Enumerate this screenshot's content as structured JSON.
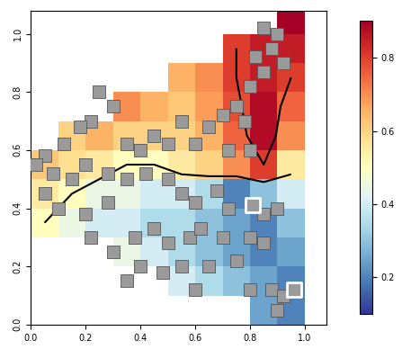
{
  "chart_data": {
    "type": "heatmap",
    "x": [
      0.05,
      0.15,
      0.25,
      0.35,
      0.45,
      0.55,
      0.65,
      0.75,
      0.85,
      0.95
    ],
    "y": [
      0.05,
      0.15,
      0.25,
      0.35,
      0.45,
      0.55,
      0.65,
      0.75,
      0.85,
      0.95,
      1.05
    ],
    "cells": [
      [
        null,
        null,
        null,
        null,
        null,
        null,
        null,
        null,
        0.25,
        0.2
      ],
      [
        null,
        null,
        null,
        null,
        null,
        0.4,
        0.35,
        0.3,
        0.25,
        0.2
      ],
      [
        null,
        null,
        null,
        0.45,
        0.4,
        0.35,
        0.3,
        0.25,
        0.2,
        0.25
      ],
      [
        0.5,
        0.45,
        0.4,
        0.4,
        0.35,
        0.35,
        0.3,
        0.25,
        0.2,
        0.3
      ],
      [
        0.55,
        0.5,
        0.45,
        0.45,
        0.4,
        0.4,
        0.35,
        0.2,
        0.3,
        0.4
      ],
      [
        0.62,
        0.58,
        0.55,
        0.5,
        0.5,
        0.55,
        0.6,
        0.7,
        0.8,
        0.55
      ],
      [
        null,
        0.6,
        0.65,
        0.6,
        0.6,
        0.6,
        0.65,
        0.75,
        0.88,
        0.7
      ],
      [
        null,
        null,
        null,
        0.7,
        0.65,
        0.62,
        0.68,
        0.78,
        0.88,
        0.75
      ],
      [
        null,
        null,
        null,
        null,
        null,
        0.65,
        0.7,
        0.8,
        0.85,
        0.8
      ],
      [
        null,
        null,
        null,
        null,
        null,
        null,
        null,
        0.8,
        0.85,
        0.85
      ],
      [
        null,
        null,
        null,
        null,
        null,
        null,
        null,
        null,
        null,
        0.9
      ]
    ],
    "contour_levels": [
      0.5,
      0.8
    ],
    "points": [
      [
        0.85,
        1.02
      ],
      [
        0.9,
        1.0
      ],
      [
        0.88,
        0.95
      ],
      [
        0.82,
        0.92
      ],
      [
        0.92,
        0.9
      ],
      [
        0.85,
        0.87
      ],
      [
        0.8,
        0.82
      ],
      [
        0.75,
        0.75
      ],
      [
        0.7,
        0.72
      ],
      [
        0.78,
        0.7
      ],
      [
        0.8,
        0.6
      ],
      [
        0.72,
        0.6
      ],
      [
        0.65,
        0.68
      ],
      [
        0.6,
        0.62
      ],
      [
        0.55,
        0.7
      ],
      [
        0.5,
        0.62
      ],
      [
        0.45,
        0.65
      ],
      [
        0.4,
        0.6
      ],
      [
        0.35,
        0.62
      ],
      [
        0.3,
        0.75
      ],
      [
        0.25,
        0.8
      ],
      [
        0.22,
        0.7
      ],
      [
        0.18,
        0.68
      ],
      [
        0.12,
        0.62
      ],
      [
        0.05,
        0.58
      ],
      [
        0.02,
        0.55
      ],
      [
        0.08,
        0.52
      ],
      [
        0.15,
        0.5
      ],
      [
        0.2,
        0.55
      ],
      [
        0.28,
        0.52
      ],
      [
        0.35,
        0.5
      ],
      [
        0.42,
        0.52
      ],
      [
        0.5,
        0.5
      ],
      [
        0.55,
        0.45
      ],
      [
        0.6,
        0.42
      ],
      [
        0.68,
        0.46
      ],
      [
        0.72,
        0.4
      ],
      [
        0.85,
        0.38
      ],
      [
        0.9,
        0.4
      ],
      [
        0.05,
        0.45
      ],
      [
        0.1,
        0.4
      ],
      [
        0.2,
        0.38
      ],
      [
        0.28,
        0.42
      ],
      [
        0.22,
        0.3
      ],
      [
        0.3,
        0.25
      ],
      [
        0.38,
        0.3
      ],
      [
        0.45,
        0.33
      ],
      [
        0.5,
        0.28
      ],
      [
        0.58,
        0.3
      ],
      [
        0.62,
        0.33
      ],
      [
        0.7,
        0.3
      ],
      [
        0.75,
        0.22
      ],
      [
        0.65,
        0.2
      ],
      [
        0.55,
        0.2
      ],
      [
        0.48,
        0.18
      ],
      [
        0.4,
        0.2
      ],
      [
        0.35,
        0.15
      ],
      [
        0.6,
        0.12
      ],
      [
        0.8,
        0.12
      ],
      [
        0.88,
        0.12
      ],
      [
        0.92,
        0.1
      ],
      [
        0.9,
        0.05
      ],
      [
        0.85,
        0.28
      ],
      [
        0.8,
        0.3
      ]
    ],
    "highlighted_points": [
      [
        0.81,
        0.41
      ],
      [
        0.96,
        0.12
      ]
    ],
    "colorbar": {
      "range": [
        0.1,
        0.9
      ],
      "ticks": [
        0.2,
        0.4,
        0.6,
        0.8
      ]
    },
    "xlim": [
      0,
      1.08
    ],
    "ylim": [
      0,
      1.08
    ],
    "xticks": [
      0.0,
      0.2,
      0.4,
      0.6,
      0.8,
      1.0
    ],
    "yticks": [
      0.0,
      0.2,
      0.4,
      0.6,
      0.8,
      1.0
    ]
  }
}
